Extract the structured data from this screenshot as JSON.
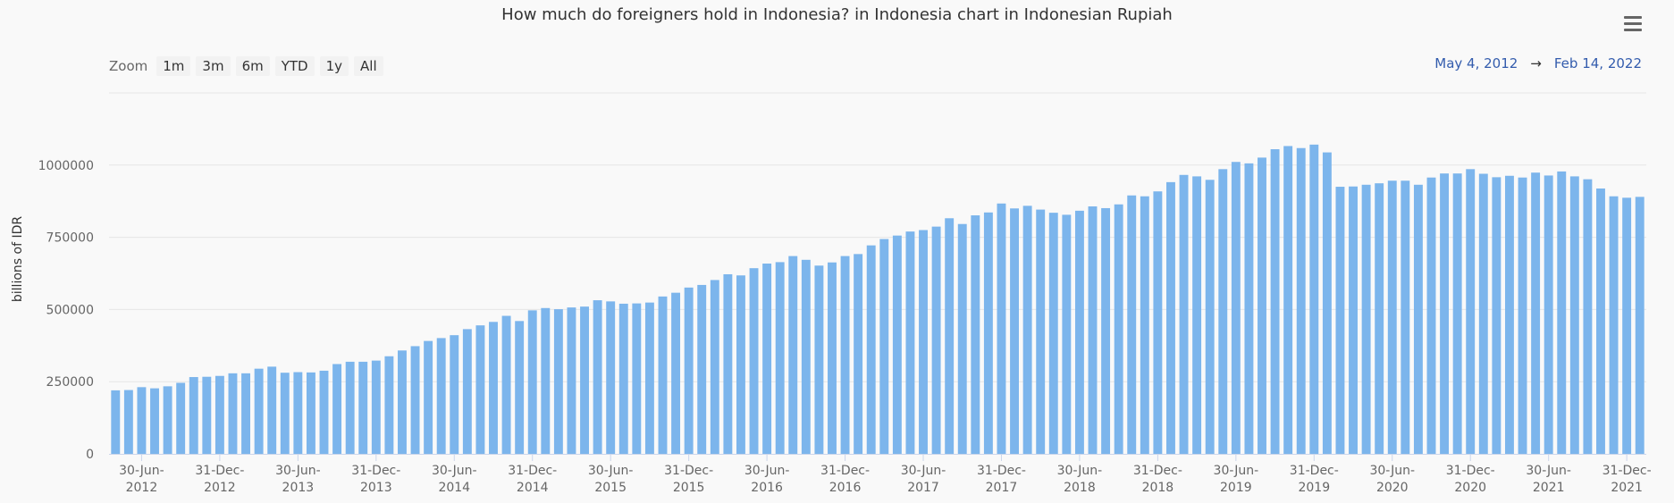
{
  "title": "How much do foreigners hold in Indonesia? in Indonesia chart in Indonesian Rupiah",
  "menu_icon": "hamburger-menu-icon",
  "zoom": {
    "label": "Zoom",
    "buttons": [
      "1m",
      "3m",
      "6m",
      "YTD",
      "1y",
      "All"
    ]
  },
  "range": {
    "from": "May 4, 2012",
    "arrow": "→",
    "to": "Feb 14, 2022"
  },
  "colors": {
    "bar": "#7cb5ec",
    "grid": "#e6e6e6",
    "range_text": "#335cad"
  },
  "chart_data": {
    "type": "bar",
    "title": "How much do foreigners hold in Indonesia? in Indonesia chart in Indonesian Rupiah",
    "xlabel": "",
    "ylabel": "billions of IDR",
    "ylim": [
      0,
      1250000
    ],
    "yticks": [
      0,
      250000,
      500000,
      750000,
      1000000
    ],
    "ytick_labels": [
      "0",
      "250000",
      "500000",
      "750000",
      "1000000"
    ],
    "grid": true,
    "xticks": [
      {
        "line1": "30-Jun-",
        "line2": "2012",
        "index": 2
      },
      {
        "line1": "31-Dec-",
        "line2": "2012",
        "index": 8
      },
      {
        "line1": "30-Jun-",
        "line2": "2013",
        "index": 14
      },
      {
        "line1": "31-Dec-",
        "line2": "2013",
        "index": 20
      },
      {
        "line1": "30-Jun-",
        "line2": "2014",
        "index": 26
      },
      {
        "line1": "31-Dec-",
        "line2": "2014",
        "index": 32
      },
      {
        "line1": "30-Jun-",
        "line2": "2015",
        "index": 38
      },
      {
        "line1": "31-Dec-",
        "line2": "2015",
        "index": 44
      },
      {
        "line1": "30-Jun-",
        "line2": "2016",
        "index": 50
      },
      {
        "line1": "31-Dec-",
        "line2": "2016",
        "index": 56
      },
      {
        "line1": "30-Jun-",
        "line2": "2017",
        "index": 62
      },
      {
        "line1": "31-Dec-",
        "line2": "2017",
        "index": 68
      },
      {
        "line1": "30-Jun-",
        "line2": "2018",
        "index": 74
      },
      {
        "line1": "31-Dec-",
        "line2": "2018",
        "index": 80
      },
      {
        "line1": "30-Jun-",
        "line2": "2019",
        "index": 86
      },
      {
        "line1": "31-Dec-",
        "line2": "2019",
        "index": 92
      },
      {
        "line1": "30-Jun-",
        "line2": "2020",
        "index": 98
      },
      {
        "line1": "31-Dec-",
        "line2": "2020",
        "index": 104
      },
      {
        "line1": "30-Jun-",
        "line2": "2021",
        "index": 110
      },
      {
        "line1": "31-Dec-",
        "line2": "2021",
        "index": 116
      }
    ],
    "values": [
      220000,
      221000,
      231000,
      227000,
      234000,
      246000,
      266000,
      267000,
      270000,
      279000,
      279000,
      295000,
      302000,
      281000,
      283000,
      282000,
      288000,
      311000,
      319000,
      319000,
      323000,
      338000,
      358000,
      373000,
      391000,
      401000,
      411000,
      432000,
      445000,
      457000,
      478000,
      460000,
      497000,
      505000,
      501000,
      507000,
      510000,
      532000,
      528000,
      520000,
      521000,
      524000,
      545000,
      558000,
      576000,
      585000,
      602000,
      622000,
      618000,
      643000,
      659000,
      664000,
      685000,
      672000,
      652000,
      663000,
      685000,
      692000,
      722000,
      744000,
      756000,
      770000,
      775000,
      787000,
      816000,
      796000,
      826000,
      836000,
      867000,
      850000,
      859000,
      846000,
      835000,
      828000,
      842000,
      857000,
      851000,
      864000,
      895000,
      892000,
      909000,
      941000,
      966000,
      961000,
      949000,
      986000,
      1011000,
      1006000,
      1026000,
      1055000,
      1066000,
      1059000,
      1071000,
      1044000,
      925000,
      926000,
      932000,
      937000,
      946000,
      946000,
      932000,
      957000,
      971000,
      971000,
      986000,
      970000,
      958000,
      963000,
      957000,
      974000,
      964000,
      978000,
      961000,
      951000,
      919000,
      892000,
      887000,
      890000
    ]
  }
}
